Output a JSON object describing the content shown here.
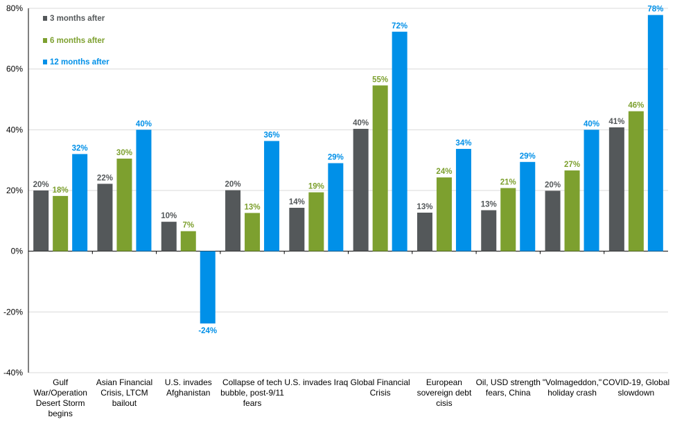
{
  "chart_data": {
    "type": "bar",
    "title": "",
    "xlabel": "",
    "ylabel": "",
    "ylim": [
      -40,
      80
    ],
    "yticks": [
      -40,
      -20,
      0,
      20,
      40,
      60,
      80
    ],
    "ytick_labels": [
      "-40%",
      "-20%",
      "0%",
      "20%",
      "40%",
      "60%",
      "80%"
    ],
    "grid": true,
    "legend_position": "top-left",
    "categories": [
      "Gulf War/Operation Desert Storm begins",
      "Asian Financial Crisis, LTCM bailout",
      "U.S. invades Afghanistan",
      "Collapse of tech bubble, post-9/11 fears",
      "U.S. invades Iraq",
      "Global Financial Crisis",
      "European sovereign debt cisis",
      "Oil, USD strength fears, China",
      "\"Volmageddon,\" holiday crash",
      "COVID-19, Global slowdown"
    ],
    "category_lines": [
      [
        "Gulf",
        "War/Operation",
        "Desert Storm",
        "begins"
      ],
      [
        "Asian Financial",
        "Crisis, LTCM",
        "bailout"
      ],
      [
        "U.S. invades",
        "Afghanistan"
      ],
      [
        "Collapse of tech",
        "bubble, post-9/11",
        "fears"
      ],
      [
        "U.S. invades Iraq"
      ],
      [
        "Global Financial",
        "Crisis"
      ],
      [
        "European",
        "sovereign debt",
        "cisis"
      ],
      [
        "Oil, USD strength",
        "fears, China"
      ],
      [
        "\"Volmageddon,\"",
        "holiday crash"
      ],
      [
        "COVID-19, Global",
        "slowdown"
      ]
    ],
    "series": [
      {
        "name": "3 months after",
        "color": "#54585A",
        "values": [
          20,
          22.2,
          9.7,
          20.1,
          14.3,
          40.3,
          12.7,
          13.5,
          19.9,
          40.8
        ],
        "labels": [
          "20%",
          "22%",
          "10%",
          "20%",
          "14%",
          "40%",
          "13%",
          "13%",
          "20%",
          "41%"
        ]
      },
      {
        "name": "6 months after",
        "color": "#7DA02F",
        "values": [
          18.2,
          30.5,
          6.6,
          12.6,
          19.4,
          54.6,
          24.3,
          20.8,
          26.6,
          46.1
        ],
        "labels": [
          "18%",
          "30%",
          "7%",
          "13%",
          "19%",
          "55%",
          "24%",
          "21%",
          "27%",
          "46%"
        ]
      },
      {
        "name": "12 months after",
        "color": "#0090E8",
        "values": [
          32,
          40,
          -23.8,
          36.3,
          29,
          72.3,
          33.7,
          29.4,
          40,
          77.8
        ],
        "labels": [
          "32%",
          "40%",
          "-24%",
          "36%",
          "29%",
          "72%",
          "34%",
          "29%",
          "40%",
          "78%"
        ]
      }
    ]
  }
}
